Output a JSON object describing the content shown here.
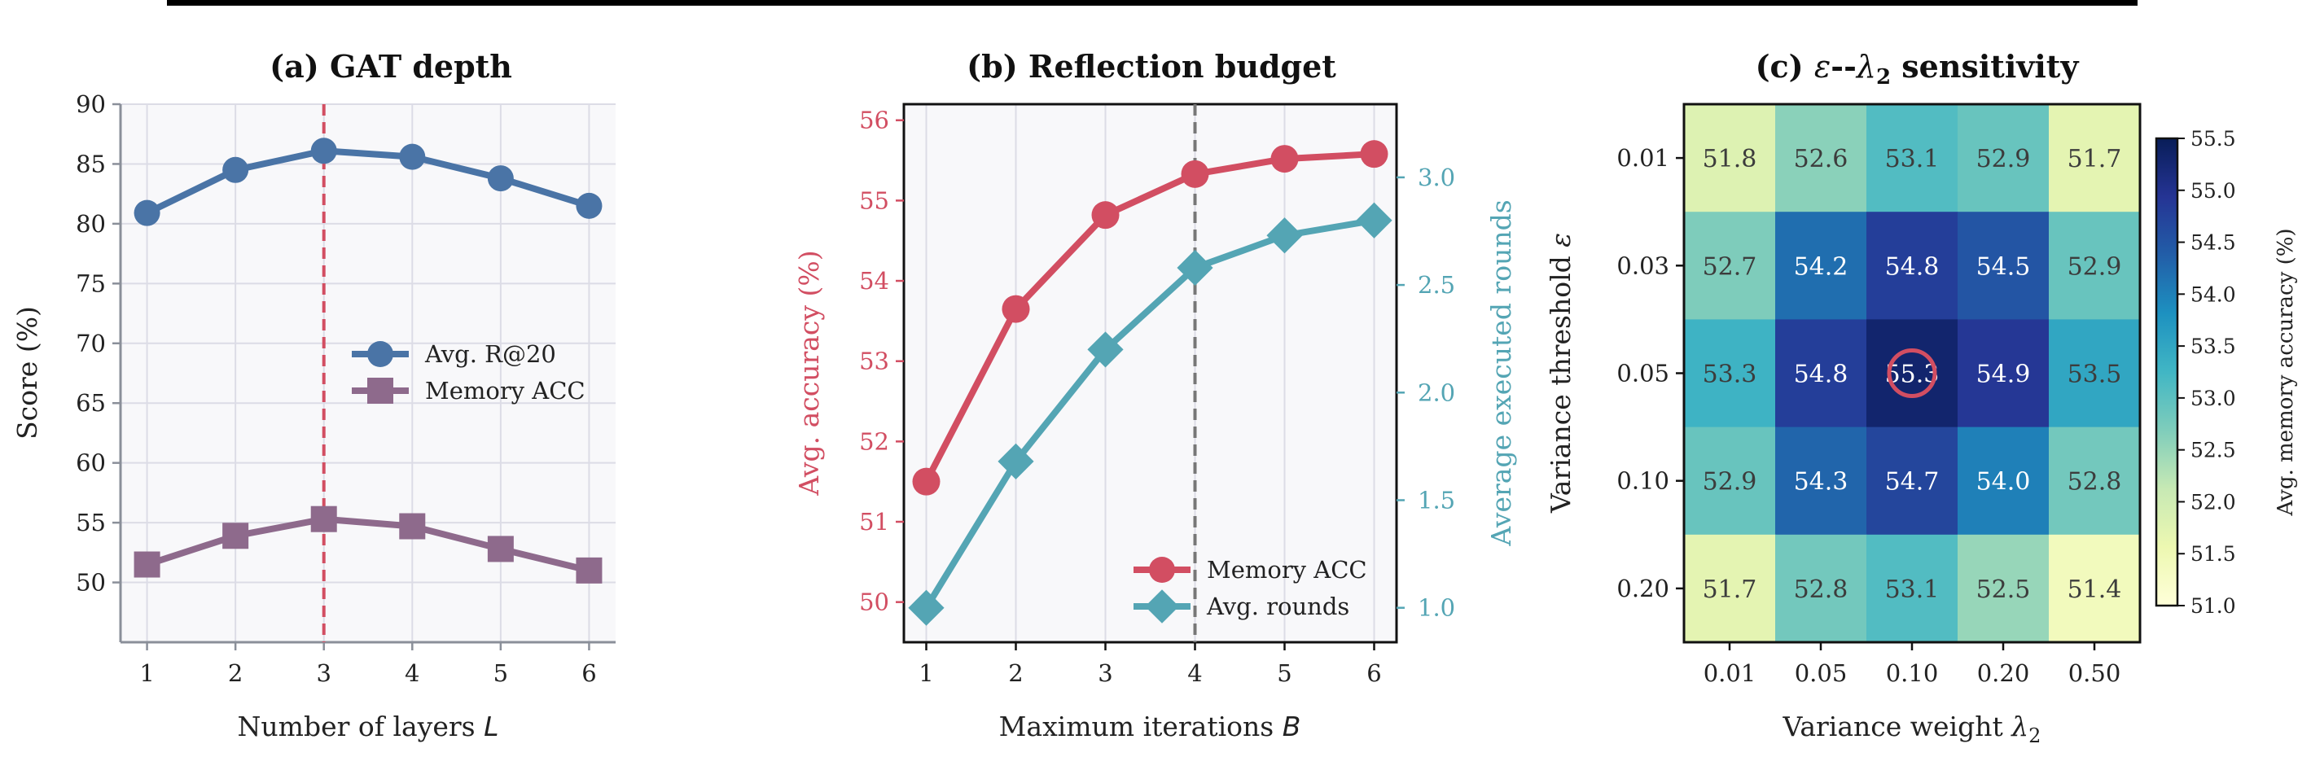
{
  "chart_data": [
    {
      "type": "line",
      "title": "(a) GAT depth",
      "xlabel": "Number of layers",
      "xlabel_symbol": "L",
      "ylabel": "Score (%)",
      "x": [
        1,
        2,
        3,
        4,
        5,
        6
      ],
      "xlim": [
        0.7,
        6.3
      ],
      "ylim": [
        45,
        90
      ],
      "yticks": [
        50,
        55,
        60,
        65,
        70,
        75,
        80,
        85,
        90
      ],
      "grid": true,
      "reference_line_x": 3,
      "legend_position": "center-right",
      "series": [
        {
          "name": "Avg. R@20",
          "values": [
            80.9,
            84.5,
            86.1,
            85.6,
            83.8,
            81.5
          ],
          "color": "#4a74a6",
          "marker": "circle"
        },
        {
          "name": "Memory ACC",
          "values": [
            51.5,
            53.9,
            55.3,
            54.7,
            52.8,
            51.0
          ],
          "color": "#8e6a8c",
          "marker": "square"
        }
      ]
    },
    {
      "type": "line",
      "title": "(b) Reflection budget",
      "xlabel": "Maximum iterations",
      "xlabel_symbol": "B",
      "ylabel": "Avg. accuracy (%)",
      "ylabel_right": "Average executed rounds",
      "x": [
        1,
        2,
        3,
        4,
        5,
        6
      ],
      "xlim": [
        0.75,
        6.25
      ],
      "ylim": [
        49.5,
        56.2
      ],
      "yticks": [
        50,
        51,
        52,
        53,
        54,
        55,
        56
      ],
      "ylim_right": [
        0.84,
        3.34
      ],
      "yticks_right": [
        "1.0",
        "1.5",
        "2.0",
        "2.5",
        "3.0"
      ],
      "grid": true,
      "reference_line_x": 4,
      "legend_position": "lower-right",
      "series": [
        {
          "name": "Memory ACC",
          "axis": "left",
          "values": [
            51.5,
            53.65,
            54.82,
            55.33,
            55.52,
            55.58
          ],
          "color": "#d24e62",
          "marker": "circle"
        },
        {
          "name": "Avg. rounds",
          "axis": "right",
          "values": [
            1.0,
            1.68,
            2.2,
            2.58,
            2.73,
            2.8
          ],
          "color": "#54a5b4",
          "marker": "diamond"
        }
      ]
    },
    {
      "type": "heatmap",
      "title_prefix": "(c) ",
      "title_eps": "ε",
      "title_sep": "--",
      "title_lambda": "λ",
      "title_sub": "2",
      "title_suffix": " sensitivity",
      "xlabel": "Variance weight",
      "xlabel_symbol": "λ",
      "xlabel_sub": "2",
      "ylabel": "Variance threshold",
      "ylabel_symbol": "ε",
      "x_categories": [
        "0.01",
        "0.05",
        "0.10",
        "0.20",
        "0.50"
      ],
      "y_categories": [
        "0.01",
        "0.03",
        "0.05",
        "0.10",
        "0.20"
      ],
      "values": [
        [
          51.8,
          52.6,
          53.1,
          52.9,
          51.7
        ],
        [
          52.7,
          54.2,
          54.8,
          54.5,
          52.9
        ],
        [
          53.3,
          54.8,
          55.3,
          54.9,
          53.5
        ],
        [
          52.9,
          54.3,
          54.7,
          54.0,
          52.8
        ],
        [
          51.7,
          52.8,
          53.1,
          52.5,
          51.4
        ]
      ],
      "highlight_cell": [
        2,
        2
      ],
      "highlight_color": "#d24e62",
      "colorbar_label": "Avg. memory accuracy (%)",
      "colorbar_range": [
        51.0,
        55.5
      ],
      "colorbar_ticks": [
        "51.0",
        "51.5",
        "52.0",
        "52.5",
        "53.0",
        "53.5",
        "54.0",
        "54.5",
        "55.0",
        "55.5"
      ],
      "colormap": "YlGnBu"
    }
  ]
}
